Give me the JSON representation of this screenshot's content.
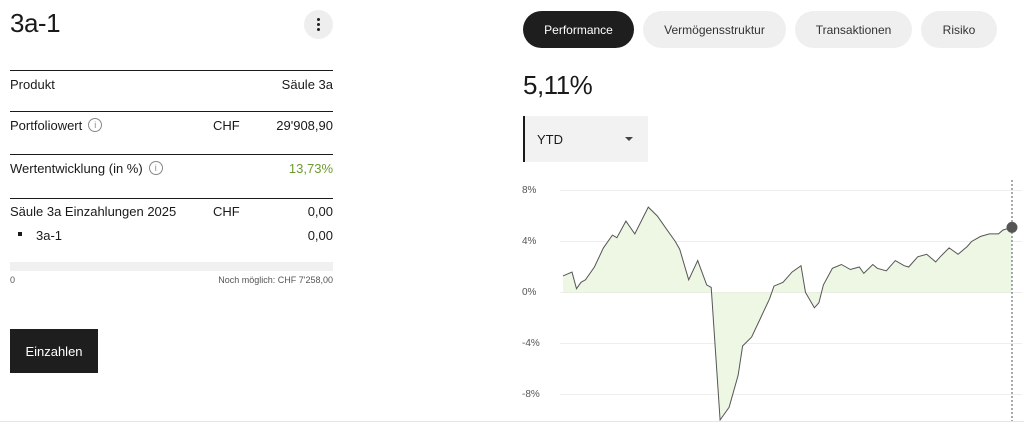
{
  "account": {
    "title": "3a-1"
  },
  "details": {
    "product_label": "Produkt",
    "product_value": "Säule 3a",
    "portfolio_label": "Portfoliowert",
    "portfolio_currency": "CHF",
    "portfolio_value": "29'908,90",
    "growth_label": "Wertentwicklung (in %)",
    "growth_value": "13,73%",
    "deposits_label": "Säule 3a Einzahlungen 2025",
    "deposits_currency": "CHF",
    "deposits_value": "0,00",
    "sub_account_label": "3a-1",
    "sub_account_value": "0,00",
    "info_glyph": "i"
  },
  "progress": {
    "fraction": 0.0,
    "min_label": "0",
    "remaining_label": "Noch möglich: CHF 7'258,00"
  },
  "actions": {
    "deposit_label": "Einzahlen"
  },
  "tabs": [
    {
      "label": "Performance",
      "active": true
    },
    {
      "label": "Vermögensstruktur",
      "active": false
    },
    {
      "label": "Transaktionen",
      "active": false
    },
    {
      "label": "Risiko",
      "active": false
    }
  ],
  "performance": {
    "value": "5,11%",
    "period": "YTD"
  },
  "colors": {
    "positive": "#6e9a32",
    "fill": "#eef6e4",
    "line": "#555555",
    "dark": "#1e1e1e"
  },
  "chart_data": {
    "type": "area",
    "ylabel": "",
    "ylim": [
      -10,
      8
    ],
    "yticks": [
      8,
      4,
      0,
      -4,
      -8
    ],
    "ytick_labels": [
      "8%",
      "4%",
      "0%",
      "-4%",
      "-8%"
    ],
    "x": [
      0,
      2,
      3,
      4,
      5,
      7,
      9,
      11,
      12,
      14,
      16,
      18,
      19,
      21,
      23,
      25,
      26,
      28,
      30,
      32,
      33,
      35,
      37,
      39,
      40,
      42,
      44,
      46,
      47,
      49,
      51,
      53,
      54,
      56,
      57,
      58,
      60,
      62,
      64,
      66,
      67,
      69,
      70,
      72,
      74,
      76,
      77,
      79,
      81,
      83,
      84,
      86,
      88,
      90,
      91,
      93,
      95,
      97,
      98,
      100
    ],
    "values": [
      1.3,
      1.6,
      0.3,
      0.8,
      1.0,
      2.0,
      3.5,
      4.5,
      4.3,
      5.6,
      4.6,
      6.0,
      6.7,
      6.0,
      5.0,
      4.0,
      3.4,
      1.0,
      2.5,
      0.6,
      0.4,
      -10.0,
      -9.0,
      -6.5,
      -4.2,
      -3.5,
      -2.0,
      -0.5,
      0.5,
      0.8,
      1.6,
      2.1,
      0.0,
      -1.2,
      -0.8,
      0.6,
      1.9,
      2.2,
      1.8,
      2.0,
      1.5,
      2.2,
      1.9,
      1.7,
      2.5,
      2.1,
      2.0,
      2.8,
      3.0,
      2.4,
      2.8,
      3.5,
      3.0,
      3.6,
      4.0,
      4.4,
      4.6,
      4.6,
      4.9,
      5.11
    ]
  }
}
